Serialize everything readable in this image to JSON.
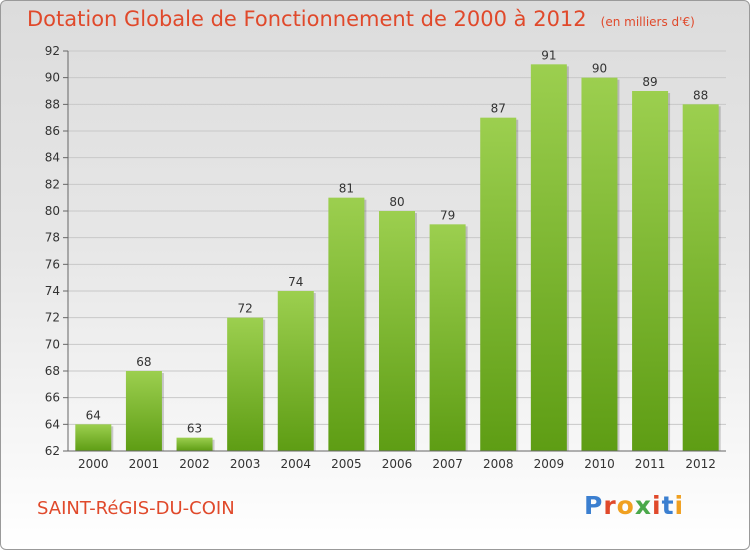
{
  "header": {
    "title": "Dotation Globale de Fonctionnement de 2000 à 2012",
    "subtitle": "(en milliers d'€)"
  },
  "footer": {
    "commune": "SAINT-RéGIS-DU-COIN",
    "logo_text": "Proxiti",
    "logo_colors": [
      "#3b7fd0",
      "#e0492b",
      "#f0a020",
      "#4aa84a",
      "#e0492b",
      "#3b7fd0",
      "#f0a020"
    ]
  },
  "chart_data": {
    "type": "bar",
    "categories": [
      "2000",
      "2001",
      "2002",
      "2003",
      "2004",
      "2005",
      "2006",
      "2007",
      "2008",
      "2009",
      "2010",
      "2011",
      "2012"
    ],
    "values": [
      64,
      68,
      63,
      72,
      74,
      81,
      80,
      79,
      87,
      91,
      90,
      89,
      88
    ],
    "title": "Dotation Globale de Fonctionnement de 2000 à 2012",
    "xlabel": "",
    "ylabel": "",
    "ylim": [
      62,
      92
    ],
    "yticks": [
      62,
      64,
      66,
      68,
      70,
      72,
      74,
      76,
      78,
      80,
      82,
      84,
      86,
      88,
      90,
      92
    ],
    "grid": true,
    "colors": {
      "bar_top": "#9ccf4f",
      "bar_bottom": "#5e9d14",
      "grid": "#c8c8c8",
      "label": "#333333"
    }
  }
}
